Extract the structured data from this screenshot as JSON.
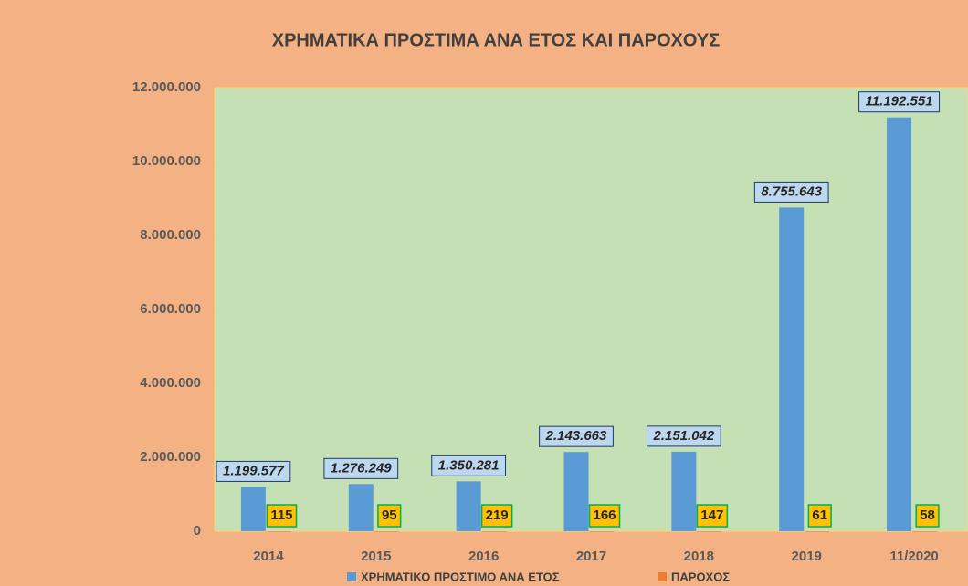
{
  "chart_data": {
    "type": "bar",
    "title": "ΧΡΗΜΑΤΙΚΑ ΠΡΟΣΤΙΜΑ ΑΝΑ ΕΤΟΣ ΚΑΙ ΠΑΡΟΧΟΥΣ",
    "categories": [
      "2014",
      "2015",
      "2016",
      "2017",
      "2018",
      "2019",
      "11/2020"
    ],
    "series": [
      {
        "name": "ΧΡΗΜΑΤΙΚΟ ΠΡΟΣΤΙΜΟ ΑΝΑ ΕΤΟΣ",
        "color": "#5b9bd5",
        "values": [
          1199577,
          1276249,
          1350281,
          2143663,
          2151042,
          8755643,
          11192551
        ],
        "value_labels": [
          "1.199.577",
          "1.276.249",
          "1.350.281",
          "2.143.663",
          "2.151.042",
          "8.755.643",
          "11.192.551"
        ]
      },
      {
        "name": "ΠΑΡΟΧΟΣ",
        "color": "#ed7d31",
        "values": [
          115,
          95,
          219,
          166,
          147,
          61,
          58
        ]
      }
    ],
    "ylim": [
      0,
      12000000
    ],
    "yticks": [
      0,
      {
        "value": 2000000,
        "label": "2.000.000"
      },
      {
        "value": 4000000,
        "label": "4.000.000"
      },
      {
        "value": 6000000,
        "label": "6.000.000"
      },
      {
        "value": 8000000,
        "label": "8.000.000"
      },
      {
        "value": 10000000,
        "label": "10.000.000"
      },
      {
        "value": 12000000,
        "label": "12.000.000"
      }
    ],
    "legend": "bottom"
  }
}
